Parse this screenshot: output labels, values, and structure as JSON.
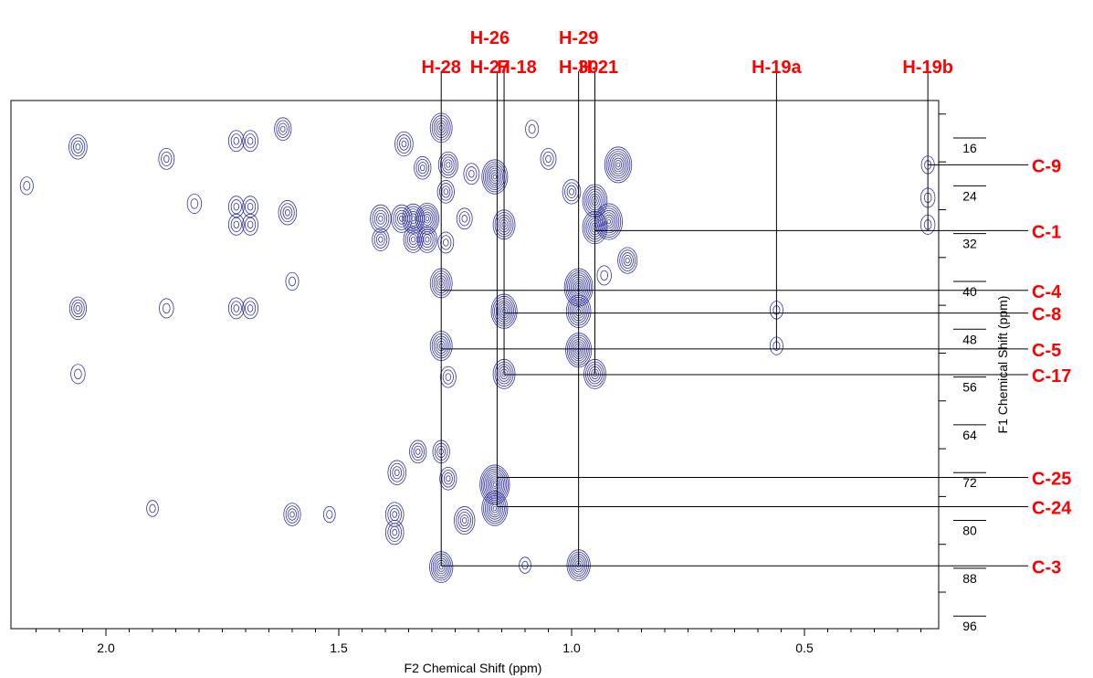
{
  "chart_data": {
    "type": "2D NMR contour (HMBC)",
    "xlabel": "F2 Chemical Shift (ppm)",
    "ylabel": "F1 Chemical Shift (ppm)",
    "xlim": [
      2.18,
      0.18
    ],
    "ylim": [
      10,
      100
    ],
    "x_ticks": [
      2.0,
      1.5,
      1.0,
      0.5
    ],
    "y_ticks": [
      16,
      24,
      32,
      40,
      48,
      56,
      64,
      72,
      80,
      88,
      96
    ],
    "x_tick_labels": [
      "2.0",
      "1.5",
      "1.0",
      "0.5"
    ],
    "y_tick_labels": [
      "16",
      "24",
      "32",
      "40",
      "48",
      "56",
      "64",
      "72",
      "80",
      "88",
      "96"
    ],
    "contour_color": "#3333aa",
    "label_color": "#ff0000",
    "proton_labels": [
      {
        "text": "H-28",
        "ppm": 1.28
      },
      {
        "text": "H-26",
        "ppm": 1.16
      },
      {
        "text": "H-27",
        "ppm": 1.16
      },
      {
        "text": "H-18",
        "ppm": 1.145
      },
      {
        "text": "H-29",
        "ppm": 0.985
      },
      {
        "text": "H-30",
        "ppm": 0.985
      },
      {
        "text": "H-21",
        "ppm": 0.95
      },
      {
        "text": "H-19a",
        "ppm": 0.56
      },
      {
        "text": "H-19b",
        "ppm": 0.235
      }
    ],
    "carbon_labels": [
      {
        "text": "C-9",
        "ppm": 20.5
      },
      {
        "text": "C-1",
        "ppm": 31.5
      },
      {
        "text": "C-4",
        "ppm": 41.5
      },
      {
        "text": "C-8",
        "ppm": 45.3
      },
      {
        "text": "C-5",
        "ppm": 51.3
      },
      {
        "text": "C-17",
        "ppm": 55.6
      },
      {
        "text": "C-25",
        "ppm": 72.8
      },
      {
        "text": "C-24",
        "ppm": 77.7
      },
      {
        "text": "C-3",
        "ppm": 87.6
      }
    ],
    "correlations": [
      {
        "h": 1.28,
        "c": 41.5
      },
      {
        "h": 1.28,
        "c": 51.3
      },
      {
        "h": 1.28,
        "c": 87.6
      },
      {
        "h": 1.16,
        "c": 72.8
      },
      {
        "h": 1.16,
        "c": 77.7
      },
      {
        "h": 1.145,
        "c": 45.3
      },
      {
        "h": 1.145,
        "c": 55.6
      },
      {
        "h": 0.985,
        "c": 41.5
      },
      {
        "h": 0.985,
        "c": 51.3
      },
      {
        "h": 0.985,
        "c": 87.6
      },
      {
        "h": 0.95,
        "c": 31.5
      },
      {
        "h": 0.95,
        "c": 55.6
      },
      {
        "h": 0.56,
        "c": 45.3
      },
      {
        "h": 0.56,
        "c": 51.3
      },
      {
        "h": 0.235,
        "c": 20.5
      },
      {
        "h": 0.235,
        "c": 31.5
      }
    ],
    "peaks": [
      {
        "x": 1.28,
        "y": 14.3,
        "s": 1.0
      },
      {
        "x": 1.28,
        "y": 40.3,
        "s": 1.0
      },
      {
        "x": 1.28,
        "y": 50.8,
        "s": 1.0
      },
      {
        "x": 1.28,
        "y": 87.8,
        "s": 1.1
      },
      {
        "x": 1.165,
        "y": 22.5,
        "s": 1.3
      },
      {
        "x": 1.165,
        "y": 74.0,
        "s": 1.6
      },
      {
        "x": 1.165,
        "y": 78.0,
        "s": 1.3
      },
      {
        "x": 1.145,
        "y": 30.5,
        "s": 1.0
      },
      {
        "x": 1.145,
        "y": 45.0,
        "s": 1.3
      },
      {
        "x": 1.145,
        "y": 55.5,
        "s": 1.0
      },
      {
        "x": 0.985,
        "y": 41.0,
        "s": 1.5
      },
      {
        "x": 0.985,
        "y": 45.0,
        "s": 1.2
      },
      {
        "x": 0.985,
        "y": 51.5,
        "s": 1.3
      },
      {
        "x": 0.985,
        "y": 87.5,
        "s": 1.1
      },
      {
        "x": 0.95,
        "y": 26.5,
        "s": 1.2
      },
      {
        "x": 0.95,
        "y": 31.0,
        "s": 1.2
      },
      {
        "x": 0.95,
        "y": 55.5,
        "s": 1.0
      },
      {
        "x": 0.9,
        "y": 20.5,
        "s": 1.4
      },
      {
        "x": 0.92,
        "y": 30.0,
        "s": 1.4
      },
      {
        "x": 0.88,
        "y": 36.5,
        "s": 0.8
      },
      {
        "x": 1.34,
        "y": 29.5,
        "s": 1.0
      },
      {
        "x": 1.31,
        "y": 29.5,
        "s": 1.1
      },
      {
        "x": 1.365,
        "y": 29.5,
        "s": 0.9
      },
      {
        "x": 1.34,
        "y": 33.0,
        "s": 0.8
      },
      {
        "x": 1.31,
        "y": 33.0,
        "s": 0.8
      },
      {
        "x": 1.41,
        "y": 29.5,
        "s": 0.9
      },
      {
        "x": 1.41,
        "y": 33.0,
        "s": 0.6
      },
      {
        "x": 1.36,
        "y": 17.0,
        "s": 0.7
      },
      {
        "x": 1.32,
        "y": 21.0,
        "s": 0.6
      },
      {
        "x": 1.265,
        "y": 20.5,
        "s": 0.8
      },
      {
        "x": 1.215,
        "y": 22.0,
        "s": 0.5
      },
      {
        "x": 1.27,
        "y": 25.0,
        "s": 0.6
      },
      {
        "x": 1.23,
        "y": 29.5,
        "s": 0.5
      },
      {
        "x": 1.27,
        "y": 33.5,
        "s": 0.5
      },
      {
        "x": 1.33,
        "y": 68.5,
        "s": 0.6
      },
      {
        "x": 1.375,
        "y": 72.0,
        "s": 0.7
      },
      {
        "x": 1.28,
        "y": 68.5,
        "s": 0.6
      },
      {
        "x": 1.265,
        "y": 73.0,
        "s": 0.6
      },
      {
        "x": 1.23,
        "y": 80.0,
        "s": 0.9
      },
      {
        "x": 1.38,
        "y": 79.0,
        "s": 0.7
      },
      {
        "x": 1.38,
        "y": 82.0,
        "s": 0.7
      },
      {
        "x": 1.265,
        "y": 56.0,
        "s": 0.5
      },
      {
        "x": 1.6,
        "y": 79.0,
        "s": 0.6
      },
      {
        "x": 1.72,
        "y": 13.5,
        "s": 0.0
      },
      {
        "x": 1.62,
        "y": 14.5,
        "s": 0.6
      },
      {
        "x": 1.72,
        "y": 16.5,
        "s": 0.5
      },
      {
        "x": 1.69,
        "y": 16.5,
        "s": 0.5
      },
      {
        "x": 2.06,
        "y": 17.5,
        "s": 0.7
      },
      {
        "x": 1.87,
        "y": 19.5,
        "s": 0.5
      },
      {
        "x": 1.72,
        "y": 27.5,
        "s": 0.5
      },
      {
        "x": 1.69,
        "y": 27.5,
        "s": 0.5
      },
      {
        "x": 1.72,
        "y": 30.5,
        "s": 0.5
      },
      {
        "x": 1.69,
        "y": 30.5,
        "s": 0.5
      },
      {
        "x": 1.61,
        "y": 28.5,
        "s": 0.7
      },
      {
        "x": 1.72,
        "y": 44.5,
        "s": 0.5
      },
      {
        "x": 1.69,
        "y": 44.5,
        "s": 0.5
      },
      {
        "x": 2.06,
        "y": 44.5,
        "s": 0.6
      },
      {
        "x": 1.87,
        "y": 44.5,
        "s": 0.4
      },
      {
        "x": 2.06,
        "y": 55.5,
        "s": 0.4
      },
      {
        "x": 1.6,
        "y": 40.0,
        "s": 0.3
      },
      {
        "x": 1.05,
        "y": 19.5,
        "s": 0.5
      },
      {
        "x": 1.0,
        "y": 25.0,
        "s": 0.7
      },
      {
        "x": 1.085,
        "y": 14.5,
        "s": 0.3
      },
      {
        "x": 0.93,
        "y": 39.0,
        "s": 0.4
      },
      {
        "x": 0.56,
        "y": 44.8,
        "s": 0.3
      },
      {
        "x": 0.56,
        "y": 50.8,
        "s": 0.3
      },
      {
        "x": 0.235,
        "y": 20.5,
        "s": 0.3
      },
      {
        "x": 0.235,
        "y": 26.0,
        "s": 0.4
      },
      {
        "x": 0.235,
        "y": 30.5,
        "s": 0.4
      },
      {
        "x": 2.17,
        "y": 24.0,
        "s": 0.3
      },
      {
        "x": 1.81,
        "y": 27.0,
        "s": 0.4
      },
      {
        "x": 1.9,
        "y": 78.0,
        "s": 0.2
      },
      {
        "x": 1.52,
        "y": 79.0,
        "s": 0.2
      },
      {
        "x": 1.1,
        "y": 87.5,
        "s": 0.2
      }
    ]
  }
}
